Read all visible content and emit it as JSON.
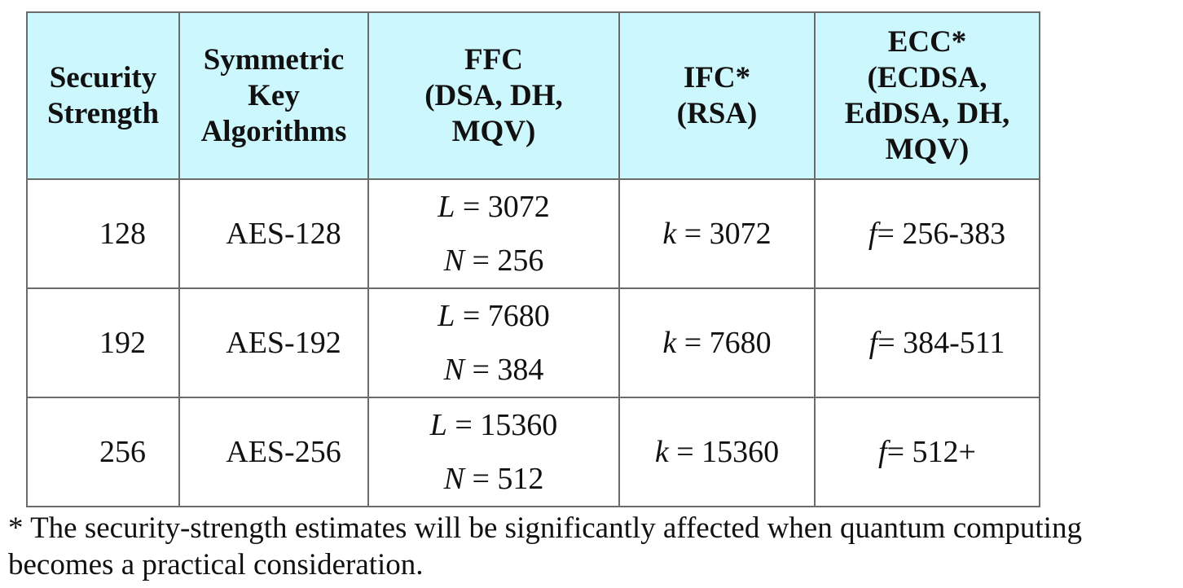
{
  "table": {
    "headers": [
      [
        "Security",
        "Strength"
      ],
      [
        "Symmetric",
        "Key",
        "Algorithms"
      ],
      [
        "FFC",
        "(DSA, DH,",
        "MQV)"
      ],
      [
        "IFC*",
        "(RSA)"
      ],
      [
        "ECC*",
        "(ECDSA,",
        "EdDSA, DH,",
        "MQV)"
      ]
    ],
    "rows": [
      {
        "strength": "128",
        "symmetric": "AES-128",
        "ffc_l": "= 3072",
        "ffc_n": "= 256",
        "ifc_k": "= 3072",
        "ecc_f": "= 256-383"
      },
      {
        "strength": "192",
        "symmetric": "AES-192",
        "ffc_l": "= 7680",
        "ffc_n": "= 384",
        "ifc_k": "= 7680",
        "ecc_f": "= 384-511"
      },
      {
        "strength": "256",
        "symmetric": "AES-256",
        "ffc_l": "= 15360",
        "ffc_n": "= 512",
        "ifc_k": "= 15360",
        "ecc_f": "= 512+"
      }
    ],
    "vars": {
      "l": "L",
      "n": "N",
      "k": "k",
      "f": "f"
    }
  },
  "footnote": {
    "line1": "* The security-strength estimates will be significantly affected when quantum computing",
    "line2": "becomes a practical consideration."
  }
}
